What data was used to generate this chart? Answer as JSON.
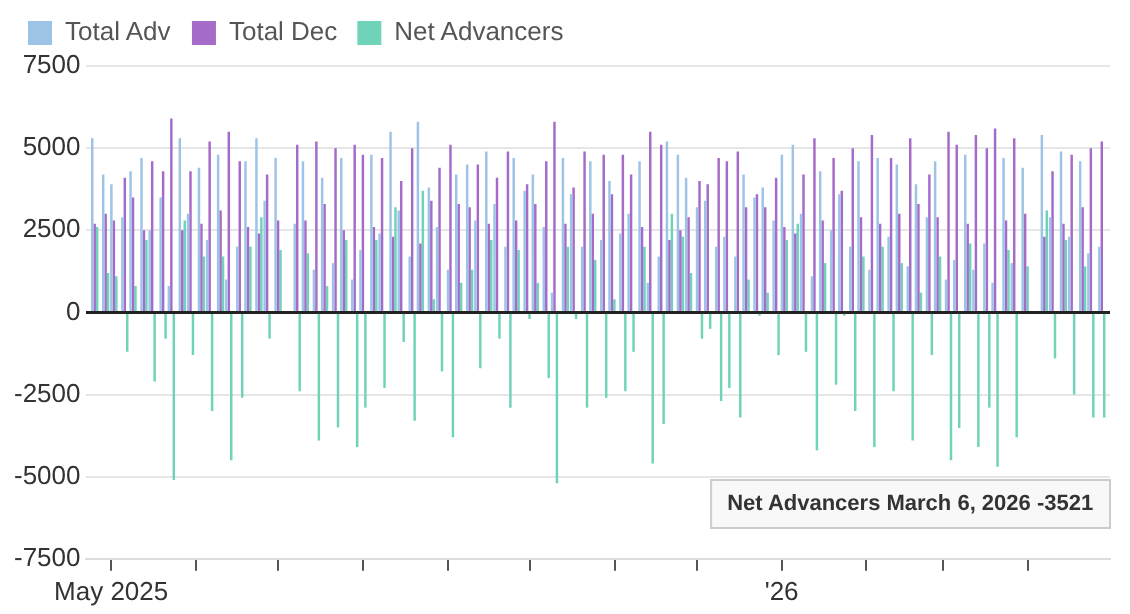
{
  "chart_data": {
    "type": "bar",
    "legend": "top left",
    "grid": "y",
    "x": [
      "2025-04-25",
      "2025-04-29",
      "2025-05-02",
      "2025-05-06",
      "2025-05-09",
      "2025-05-13",
      "2025-05-16",
      "2025-05-20",
      "2025-05-23",
      "2025-05-27",
      "2025-05-30",
      "2025-06-03",
      "2025-06-06",
      "2025-06-10",
      "2025-06-13",
      "2025-06-17",
      "2025-06-20",
      "2025-06-24",
      "2025-06-27",
      "2025-07-01",
      "2025-07-08",
      "2025-07-11",
      "2025-07-15",
      "2025-07-18",
      "2025-07-22",
      "2025-07-25",
      "2025-07-29",
      "2025-08-01",
      "2025-08-05",
      "2025-08-08",
      "2025-08-12",
      "2025-08-15",
      "2025-08-19",
      "2025-08-22",
      "2025-08-26",
      "2025-08-29",
      "2025-09-02",
      "2025-09-05",
      "2025-09-09",
      "2025-09-12",
      "2025-09-16",
      "2025-09-19",
      "2025-09-23",
      "2025-09-26",
      "2025-09-30",
      "2025-10-03",
      "2025-10-07",
      "2025-10-10",
      "2025-10-14",
      "2025-10-17",
      "2025-10-21",
      "2025-10-24",
      "2025-10-28",
      "2025-10-31",
      "2025-11-04",
      "2025-11-07",
      "2025-11-11",
      "2025-11-14",
      "2025-11-18",
      "2025-11-21",
      "2025-11-25",
      "2025-11-28",
      "2025-12-02",
      "2025-12-05",
      "2025-12-09",
      "2025-12-12",
      "2025-12-16",
      "2025-12-19",
      "2025-12-23",
      "2025-12-26",
      "2025-12-30",
      "2026-01-02",
      "2026-01-06",
      "2026-01-09",
      "2026-01-13",
      "2026-01-16",
      "2026-01-20",
      "2026-01-23",
      "2026-01-27",
      "2026-01-30",
      "2026-02-03",
      "2026-02-06",
      "2026-02-10",
      "2026-02-13",
      "2026-02-17",
      "2026-02-20",
      "2026-02-24",
      "2026-02-27",
      "2026-03-03",
      "2026-03-06",
      "2026-03-10",
      "2026-03-13",
      "2026-03-17",
      "2026-03-20",
      "2026-03-24",
      "2026-03-27",
      "2026-03-31",
      "2026-04-07",
      "2026-04-10",
      "2026-04-14",
      "2026-04-17",
      "2026-04-21",
      "2026-04-24",
      "2026-04-28"
    ],
    "series": [
      {
        "name": "Total Adv",
        "color": "#9dc3e6",
        "values": [
          5300,
          4200,
          3900,
          2900,
          4300,
          4700,
          2500,
          3500,
          800,
          5300,
          3000,
          4400,
          2200,
          4800,
          1000,
          2000,
          4600,
          5300,
          3400,
          4700,
          2700,
          4600,
          1300,
          4100,
          1500,
          4700,
          1000,
          1900,
          4800,
          2400,
          5500,
          3100,
          1700,
          5800,
          3800,
          2600,
          1300,
          4200,
          4500,
          2800,
          4900,
          3300,
          2000,
          4700,
          3700,
          4200,
          2600,
          600,
          4700,
          3600,
          2000,
          4600,
          2200,
          4000,
          2400,
          3000,
          4600,
          900,
          1700,
          5200,
          4800,
          4100,
          3200,
          3400,
          2000,
          2300,
          1700,
          4200,
          3500,
          3800,
          2800,
          4800,
          5100,
          3000,
          1100,
          4300,
          2500,
          3600,
          2000,
          4600,
          1300,
          4700,
          2300,
          4500,
          1400,
          3900,
          2900,
          4600,
          1000,
          1600,
          4800,
          1300,
          2100,
          900,
          4700,
          1500,
          4400,
          5400,
          2900,
          4900,
          2300,
          4600,
          1800,
          2000
        ]
      },
      {
        "name": "Total Dec",
        "color": "#a56bc8",
        "values": [
          2700,
          3000,
          2800,
          4100,
          3500,
          2500,
          4600,
          4300,
          5900,
          2500,
          4300,
          2700,
          5200,
          3100,
          5500,
          4600,
          2600,
          2400,
          4200,
          2800,
          5100,
          2800,
          5200,
          3300,
          5000,
          2500,
          5100,
          4800,
          2600,
          4700,
          2300,
          4000,
          5000,
          2100,
          3400,
          4400,
          5100,
          3300,
          3200,
          4500,
          2700,
          4100,
          4900,
          2800,
          3900,
          3300,
          4600,
          5800,
          2700,
          3800,
          4900,
          3000,
          4800,
          3600,
          4800,
          4200,
          2600,
          5500,
          5100,
          2200,
          2500,
          2900,
          4000,
          3900,
          4700,
          4600,
          4900,
          3200,
          3600,
          3200,
          4100,
          2600,
          2400,
          4200,
          5300,
          2800,
          4700,
          3700,
          5000,
          2900,
          5400,
          2700,
          4700,
          3000,
          5300,
          3300,
          4200,
          2900,
          5500,
          5100,
          2700,
          5400,
          5000,
          5600,
          2800,
          5300,
          3000,
          2300,
          4300,
          2700,
          4800,
          3200,
          5000,
          5200
        ]
      },
      {
        "name": "Net Advancers",
        "color": "#6fd3b9",
        "values": [
          2600,
          1200,
          1100,
          -1200,
          800,
          2200,
          -2100,
          -800,
          -5100,
          2800,
          -1300,
          1700,
          -3000,
          1700,
          -4500,
          -2600,
          2000,
          2900,
          -800,
          1900,
          -2400,
          1800,
          -3900,
          800,
          -3500,
          2200,
          -4100,
          -2900,
          2200,
          -2300,
          3200,
          -900,
          -3300,
          3700,
          400,
          -1800,
          -3800,
          900,
          1300,
          -1700,
          2200,
          -800,
          -2900,
          1900,
          -200,
          900,
          -2000,
          -5200,
          2000,
          -200,
          -2900,
          1600,
          -2600,
          400,
          -2400,
          -1200,
          2000,
          -4600,
          -3400,
          3000,
          2300,
          1200,
          -800,
          -500,
          -2700,
          -2300,
          -3200,
          1000,
          -100,
          600,
          -1300,
          2200,
          2700,
          -1200,
          -4200,
          1500,
          -2200,
          -100,
          -3000,
          1700,
          -4100,
          2000,
          -2400,
          1500,
          -3900,
          600,
          -1300,
          1700,
          -4500,
          -3521,
          2100,
          -4100,
          -2900,
          -4700,
          1900,
          -3800,
          1400,
          3100,
          -1400,
          2200,
          -2500,
          1400,
          -3200,
          -3200
        ]
      }
    ],
    "xlim": [
      "2025-04-22",
      "2026-05-01"
    ],
    "xticks": [
      {
        "value": "2025-05",
        "label": "May 2025"
      },
      {
        "value": "2025-06",
        "label": null
      },
      {
        "value": "2025-07",
        "label": null
      },
      {
        "value": "2025-08",
        "label": null
      },
      {
        "value": "2025-09",
        "label": null
      },
      {
        "value": "2025-10",
        "label": null
      },
      {
        "value": "2025-11",
        "label": null
      },
      {
        "value": "2025-12",
        "label": null
      },
      {
        "value": "2026-01",
        "label": "'26"
      },
      {
        "value": "2026-02",
        "label": null
      },
      {
        "value": "2026-03",
        "label": null
      },
      {
        "value": "2026-04",
        "label": null
      }
    ],
    "ylim": [
      -7500,
      7500
    ],
    "yticks": [
      -7500,
      -5000,
      -2500,
      0,
      2500,
      5000,
      7500
    ],
    "annotations": [
      {
        "text": "Net Advancers March 6, 2026 -3521",
        "x": "2026-03-06",
        "y": -3521
      }
    ]
  }
}
